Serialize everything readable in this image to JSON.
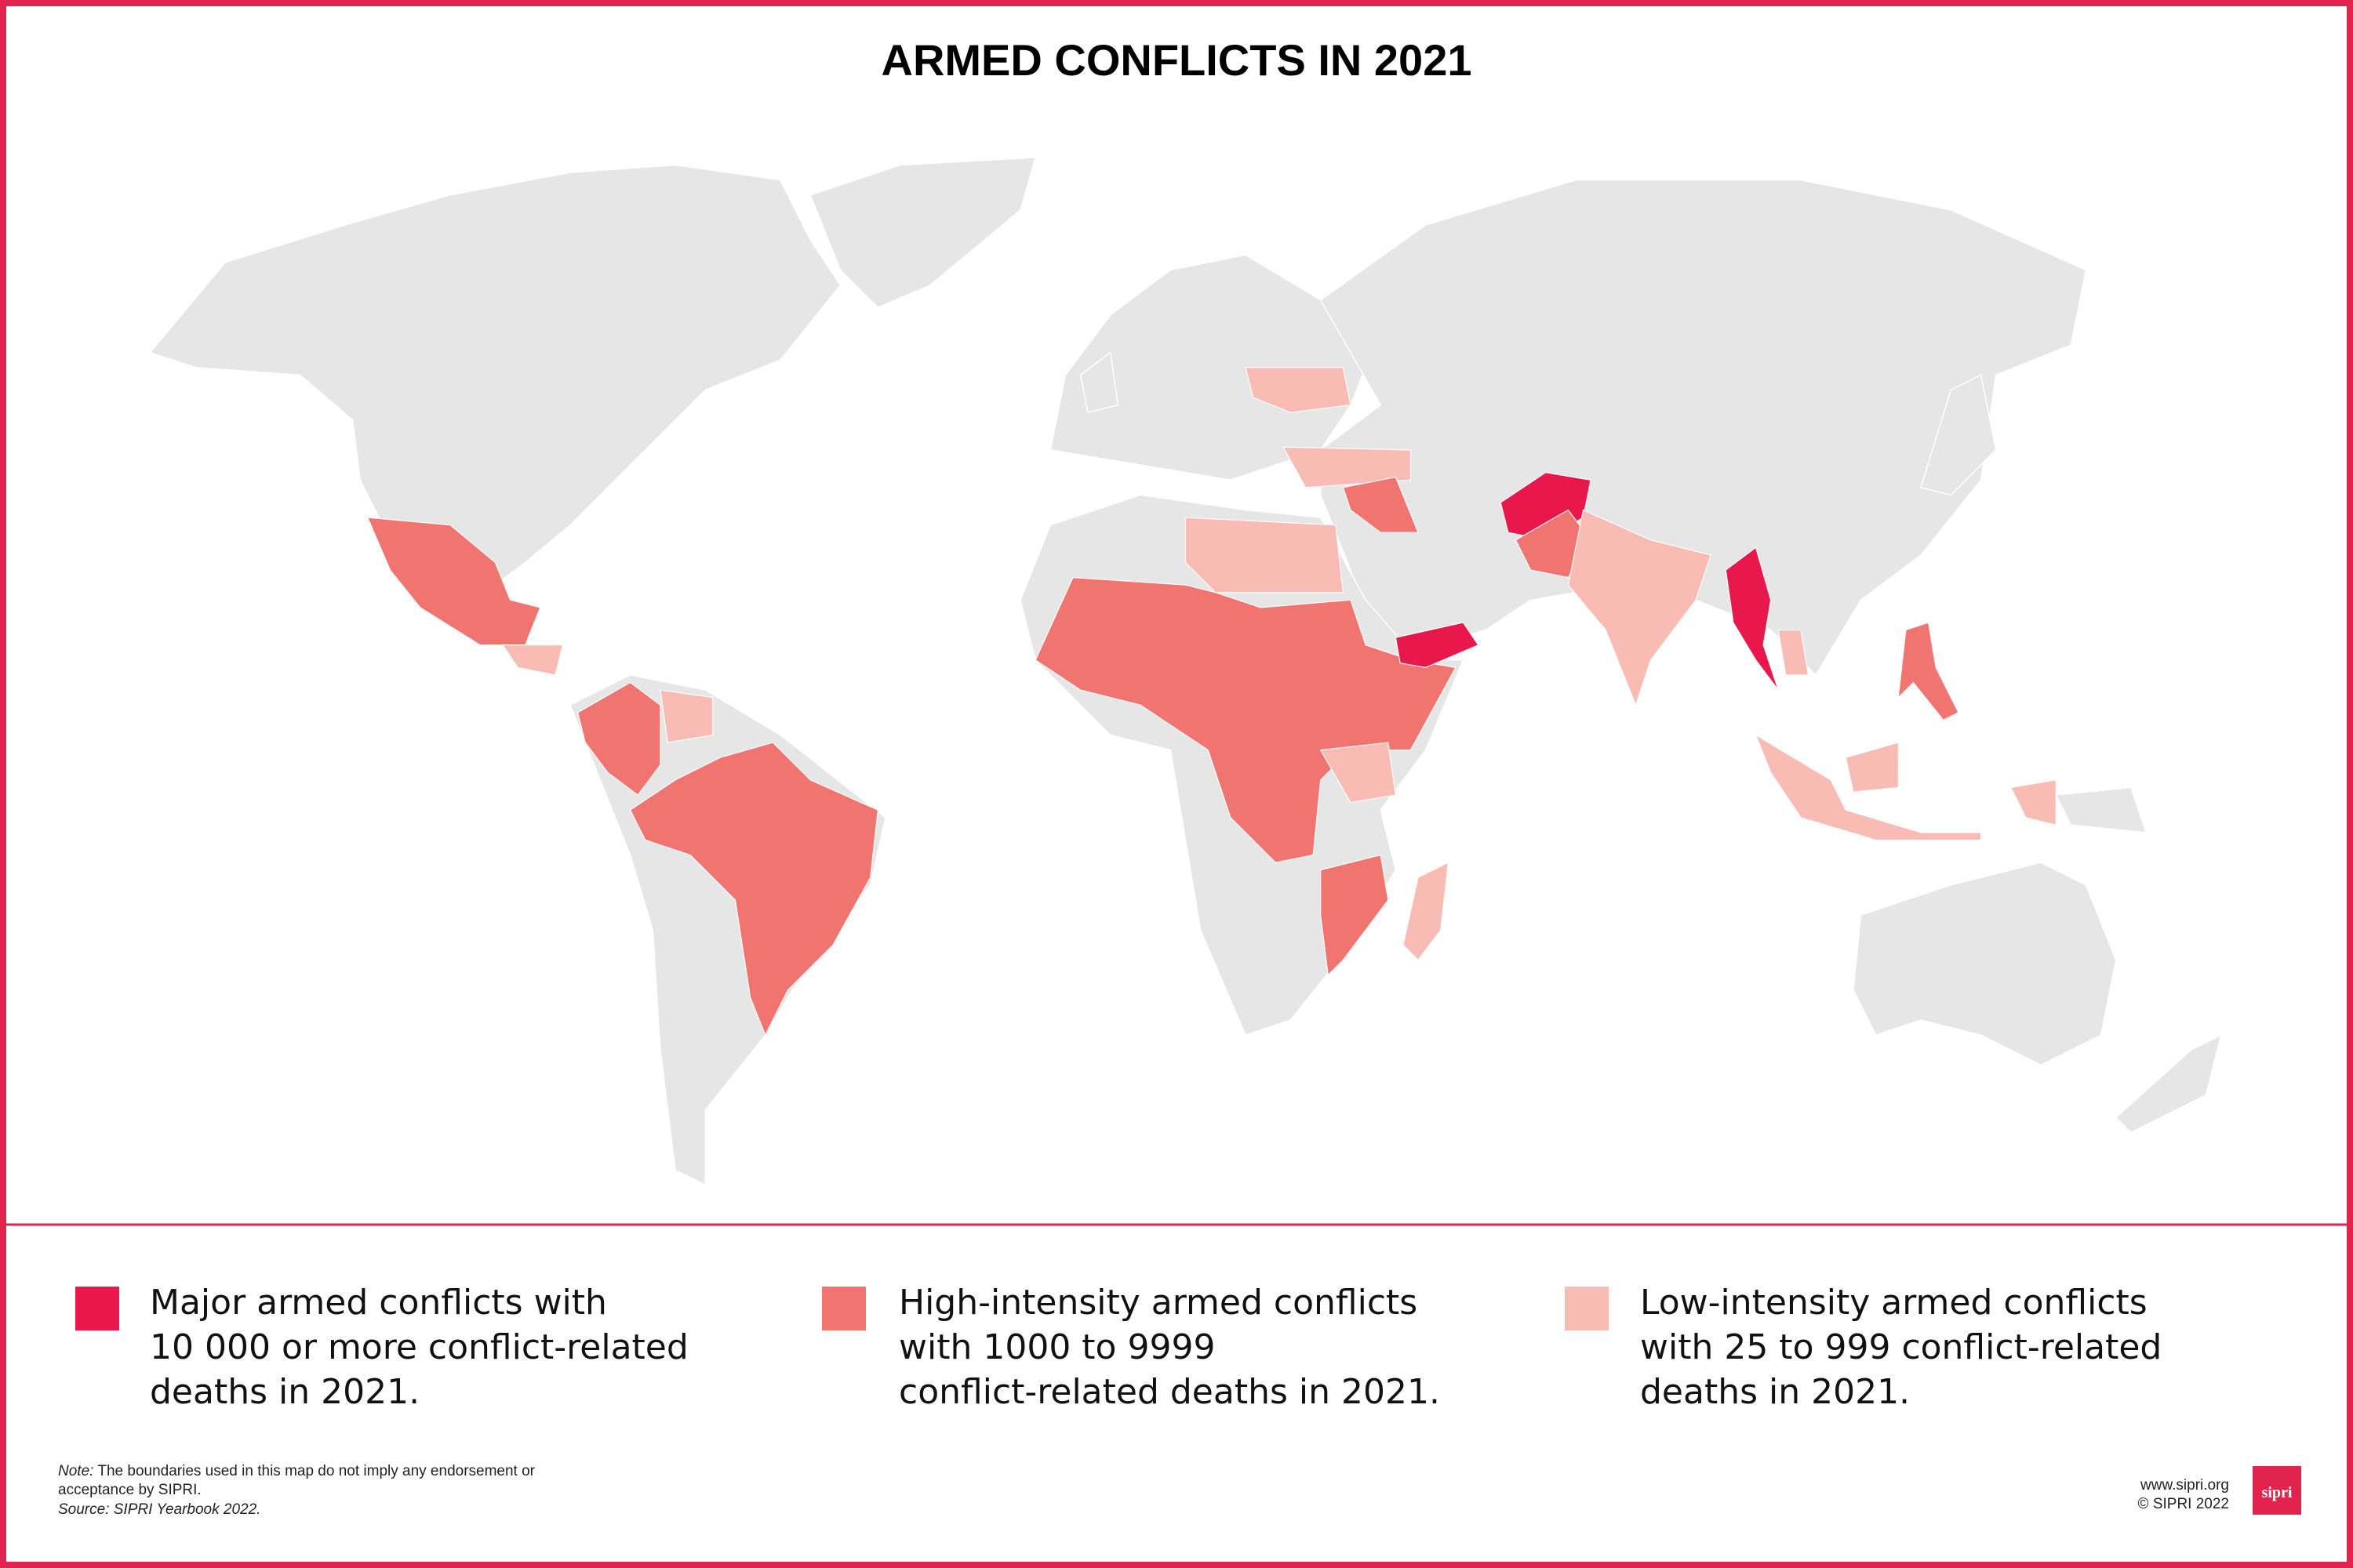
{
  "header": {
    "title": "ARMED CONFLICTS IN 2021"
  },
  "legend": [
    {
      "color": "#e8174c",
      "lines": [
        "Major armed conflicts with",
        "10 000 or more conflict-related",
        "deaths in 2021."
      ]
    },
    {
      "color": "#f07470",
      "lines": [
        "High-intensity armed conflicts",
        "with 1000 to 9999",
        "conflict-related deaths in 2021."
      ]
    },
    {
      "color": "#f9bcb5",
      "lines": [
        "Low-intensity armed conflicts",
        "with 25 to 999 conflict-related",
        "deaths in 2021."
      ]
    }
  ],
  "footer": {
    "note_label": "Note:",
    "note_text_1": " The boundaries used in this map do not imply any endorsement or",
    "note_text_2": "acceptance by SIPRI.",
    "source": "Source: SIPRI Yearbook 2022.",
    "website": "www.sipri.org",
    "copyright": "© SIPRI 2022",
    "logo": "sipri"
  }
}
